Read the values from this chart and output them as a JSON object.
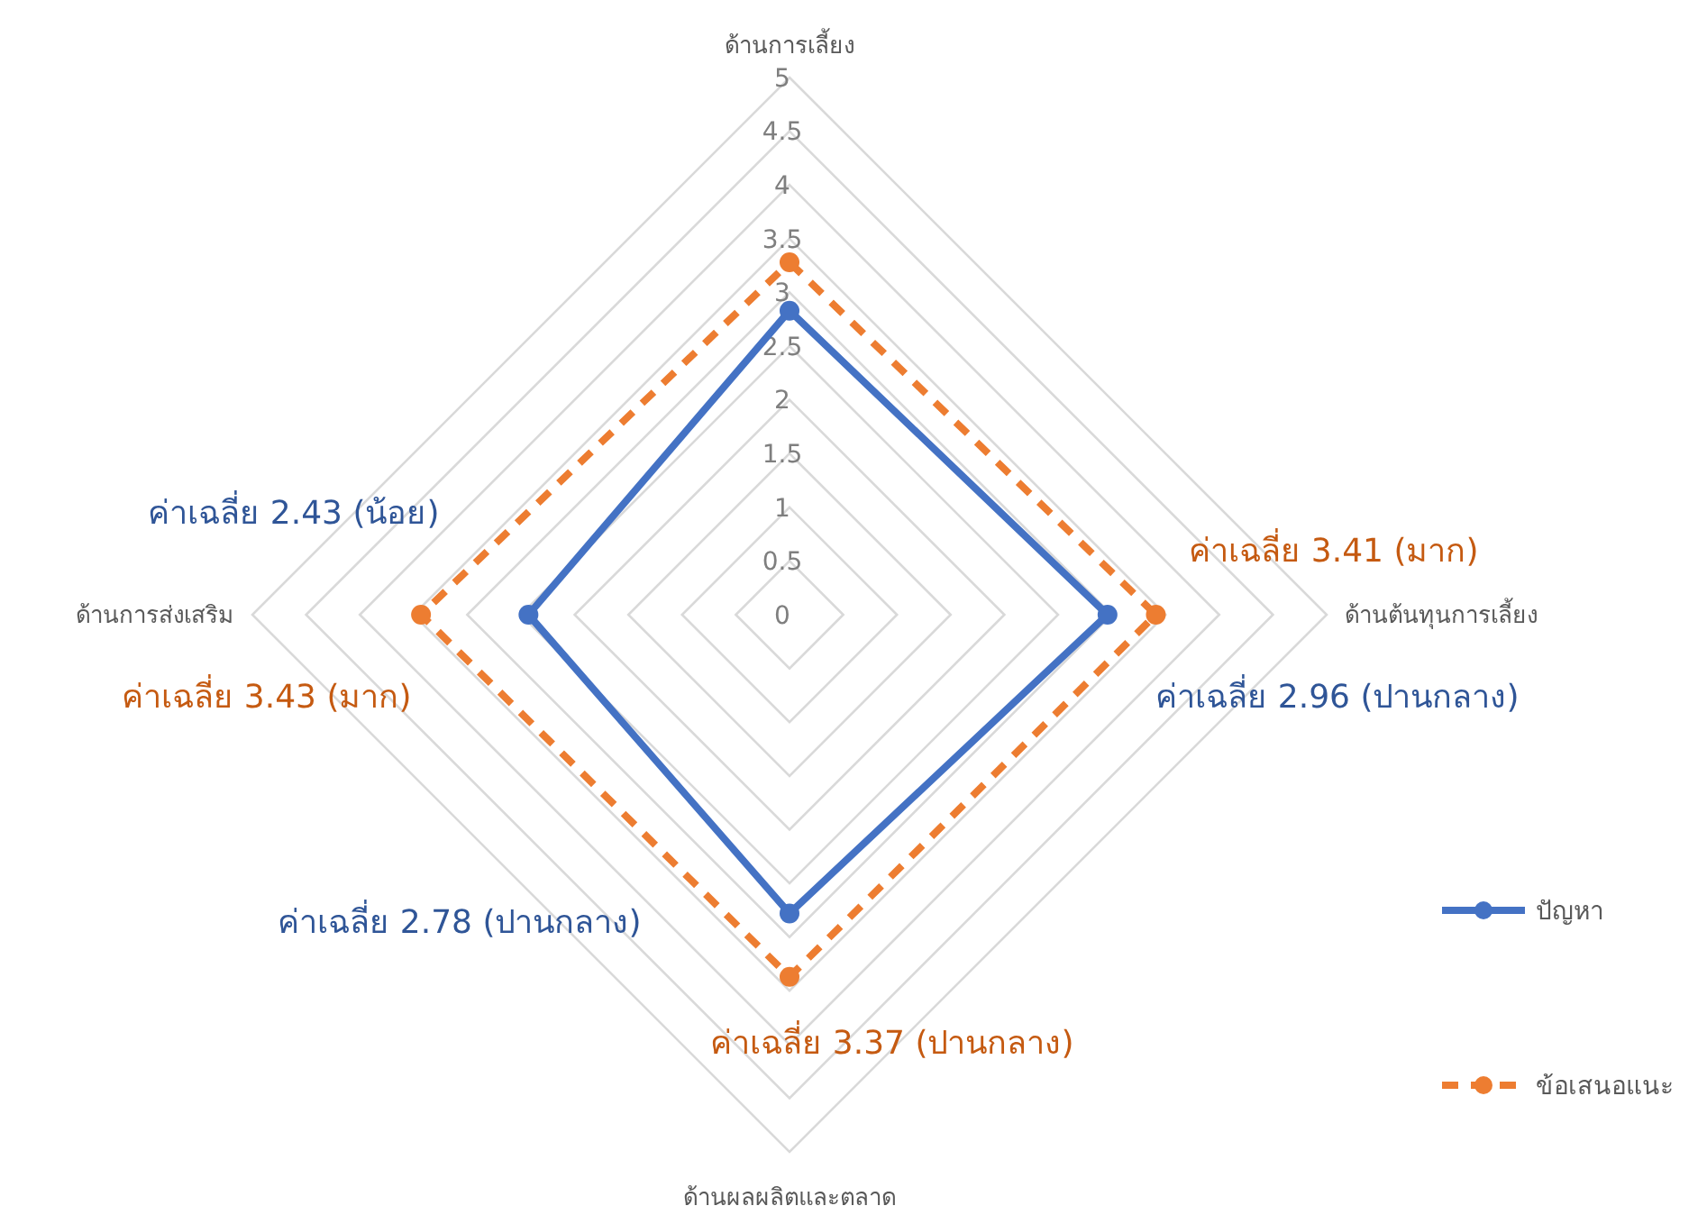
{
  "chart_data": {
    "type": "radar",
    "categories": [
      "ด้านการเลี้ยง",
      "ด้านต้นทุนการเลี้ยง",
      "ด้านผลผลิตและตลาด",
      "ด้านการส่งเสริม"
    ],
    "series": [
      {
        "name": "ปัญหา",
        "color": "#4472c4",
        "values": [
          2.83,
          2.96,
          2.78,
          2.43
        ],
        "line_style": "solid"
      },
      {
        "name": "ข้อเสนอแนะ",
        "color": "#ed7d31",
        "values": [
          3.28,
          3.41,
          3.37,
          3.43
        ],
        "line_style": "dashed"
      }
    ],
    "ylim": [
      0,
      5
    ],
    "yticks": [
      0,
      0.5,
      1,
      1.5,
      2,
      2.5,
      3,
      3.5,
      4,
      4.5,
      5
    ],
    "grid": true,
    "legend": "right",
    "marker": "circle",
    "annotations": [
      "ค่าเฉลี่ย 3.41 (มาก)",
      "ค่าเฉลี่ย 2.96 (ปานกลาง)",
      "ค่าเฉลี่ย 2.78 (ปานกลาง)",
      "ค่าเฉลี่ย 3.37 (ปานกลาง)",
      "ค่าเฉลี่ย 2.43 (น้อย)",
      "ค่าเฉลี่ย 3.43 (มาก)"
    ]
  }
}
